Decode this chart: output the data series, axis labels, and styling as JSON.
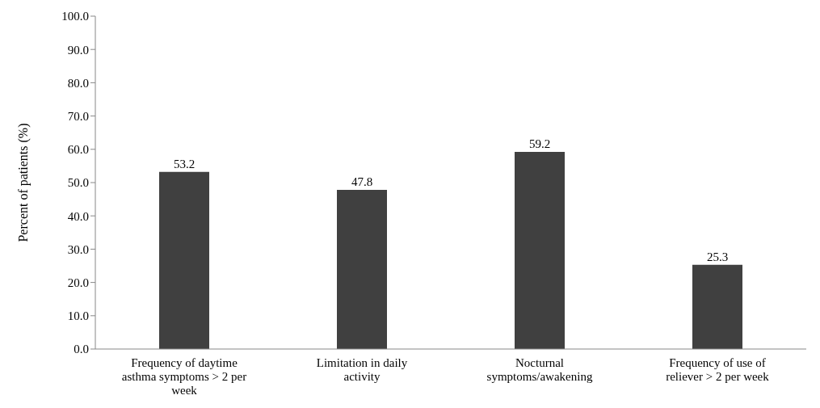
{
  "chart_data": {
    "type": "bar",
    "ylabel": "Percent of patients (%)",
    "categories": [
      "Frequency of daytime asthma symptoms > 2 per week",
      "Limitation in daily activity",
      "Nocturnal symptoms/awakening",
      "Frequency of use of reliever > 2 per week"
    ],
    "values": [
      53.2,
      47.8,
      59.2,
      25.3
    ],
    "color": "#404040",
    "ylim": [
      0,
      100
    ],
    "yticks": [
      {
        "value": 0,
        "label": "0.0"
      },
      {
        "value": 10,
        "label": "10.0"
      },
      {
        "value": 20,
        "label": "20.0"
      },
      {
        "value": 30,
        "label": "30.0"
      },
      {
        "value": 40,
        "label": "40.0"
      },
      {
        "value": 50,
        "label": "50.0"
      },
      {
        "value": 60,
        "label": "60.0"
      },
      {
        "value": 70,
        "label": "70.0"
      },
      {
        "value": 80,
        "label": "80.0"
      },
      {
        "value": 90,
        "label": "90.0"
      },
      {
        "value": 100,
        "label": "100.0"
      }
    ],
    "data_labels": true,
    "grid": false,
    "legend": false
  }
}
